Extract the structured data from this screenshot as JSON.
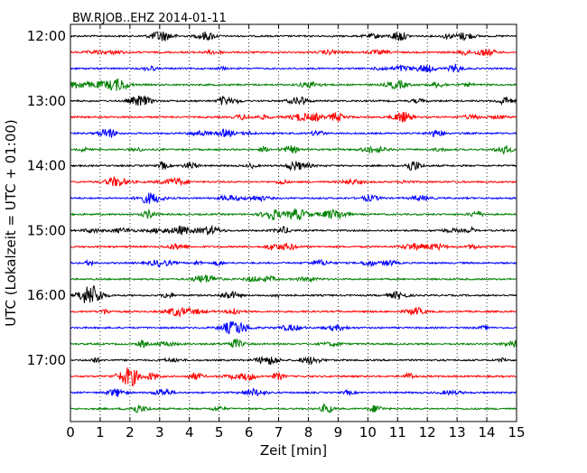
{
  "chart_data": {
    "type": "line",
    "title": "BW.RJOB..EHZ 2014-01-11",
    "xlabel": "Zeit  [min]",
    "ylabel": "UTC (Lokalzeit = UTC + 01:00)",
    "xlim": [
      0,
      15
    ],
    "x_ticks": [
      0,
      1,
      2,
      3,
      4,
      5,
      6,
      7,
      8,
      9,
      10,
      11,
      12,
      13,
      14,
      15
    ],
    "y_tick_labels": [
      "12:00",
      "13:00",
      "14:00",
      "15:00",
      "16:00",
      "17:00"
    ],
    "trace_colors": [
      "#000000",
      "#ff0000",
      "#0000ff",
      "#008000"
    ],
    "grid": "vertical dotted lines at each minute",
    "series": [
      {
        "start": "12:00"
      },
      {
        "start": "12:15"
      },
      {
        "start": "12:30"
      },
      {
        "start": "12:45"
      },
      {
        "start": "13:00"
      },
      {
        "start": "13:15"
      },
      {
        "start": "13:30"
      },
      {
        "start": "13:45"
      },
      {
        "start": "14:00"
      },
      {
        "start": "14:15"
      },
      {
        "start": "14:30"
      },
      {
        "start": "14:45"
      },
      {
        "start": "15:00"
      },
      {
        "start": "15:15"
      },
      {
        "start": "15:30"
      },
      {
        "start": "15:45"
      },
      {
        "start": "16:00"
      },
      {
        "start": "16:15"
      },
      {
        "start": "16:30"
      },
      {
        "start": "16:45"
      },
      {
        "start": "17:00"
      },
      {
        "start": "17:15"
      },
      {
        "start": "17:30"
      },
      {
        "start": "17:45"
      }
    ]
  }
}
